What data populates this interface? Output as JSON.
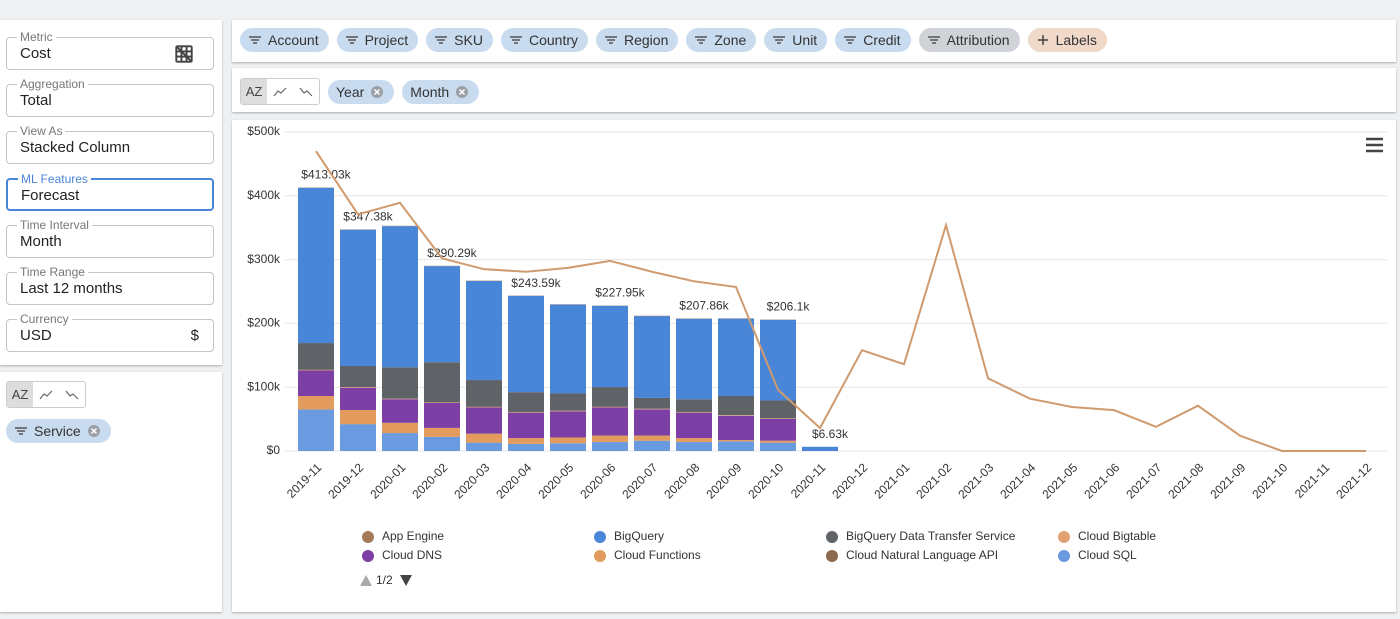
{
  "sidebar": {
    "fields": [
      {
        "label": "Metric",
        "value": "Cost"
      },
      {
        "label": "Aggregation",
        "value": "Total"
      },
      {
        "label": "View As",
        "value": "Stacked Column"
      },
      {
        "label": "ML Features",
        "value": "Forecast"
      },
      {
        "label": "Time Interval",
        "value": "Month"
      },
      {
        "label": "Time Range",
        "value": "Last 12 months"
      },
      {
        "label": "Currency",
        "value": "USD",
        "suffix": "$"
      }
    ],
    "sort_label": "AZ",
    "chips": [
      "Service"
    ]
  },
  "filters": [
    "Account",
    "Project",
    "SKU",
    "Country",
    "Region",
    "Zone",
    "Unit",
    "Credit",
    "Attribution"
  ],
  "labels_button": "Labels",
  "group_by": {
    "sort_label": "AZ",
    "chips": [
      "Year",
      "Month"
    ]
  },
  "chart_data": {
    "type": "stacked-bar",
    "categories": [
      "2019-11",
      "2019-12",
      "2020-01",
      "2020-02",
      "2020-03",
      "2020-04",
      "2020-05",
      "2020-06",
      "2020-07",
      "2020-08",
      "2020-09",
      "2020-10",
      "2020-11",
      "2020-12",
      "2021-01",
      "2021-02",
      "2021-03",
      "2021-04",
      "2021-05",
      "2021-06",
      "2021-07",
      "2021-08",
      "2021-09",
      "2021-10",
      "2021-11",
      "2021-12"
    ],
    "series": [
      {
        "name": "App Engine",
        "color": "#a47a58",
        "values": [
          500,
          500,
          500,
          500,
          500,
          500,
          500,
          500,
          500,
          500,
          500,
          500,
          0,
          null,
          null,
          null,
          null,
          null,
          null,
          null,
          null,
          null,
          null,
          null,
          null,
          null
        ]
      },
      {
        "name": "BigQuery",
        "color": "#4a86d8",
        "values": [
          243330,
          213680,
          221300,
          150590,
          155300,
          150890,
          139300,
          127250,
          128300,
          126160,
          121300,
          126400,
          6630,
          null,
          null,
          null,
          null,
          null,
          null,
          null,
          null,
          null,
          null,
          null,
          null,
          null
        ]
      },
      {
        "name": "BigQuery Data Transfer Service",
        "color": "#5f6368",
        "values": [
          42000,
          33000,
          49000,
          63000,
          42000,
          31000,
          27000,
          31000,
          17000,
          20000,
          30000,
          28000,
          0,
          null,
          null,
          null,
          null,
          null,
          null,
          null,
          null,
          null,
          null,
          null,
          null,
          null
        ]
      },
      {
        "name": "Cloud Bigtable",
        "color": "#e0a070",
        "values": [
          1000,
          1000,
          1000,
          1000,
          1000,
          1000,
          1000,
          1000,
          1000,
          1000,
          1000,
          1000,
          0,
          null,
          null,
          null,
          null,
          null,
          null,
          null,
          null,
          null,
          null,
          null,
          null,
          null
        ]
      },
      {
        "name": "Cloud DNS",
        "color": "#7b3fa6",
        "values": [
          40000,
          35000,
          37000,
          39000,
          41000,
          40000,
          41000,
          44000,
          41000,
          40000,
          38000,
          34000,
          0,
          null,
          null,
          null,
          null,
          null,
          null,
          null,
          null,
          null,
          null,
          null,
          null,
          null
        ]
      },
      {
        "name": "Cloud Functions",
        "color": "#e39b5e",
        "values": [
          21000,
          22000,
          16000,
          14000,
          14000,
          9000,
          9000,
          10000,
          8000,
          6000,
          2000,
          3000,
          0,
          null,
          null,
          null,
          null,
          null,
          null,
          null,
          null,
          null,
          null,
          null,
          null,
          null
        ]
      },
      {
        "name": "Cloud Natural Language API",
        "color": "#8c6a4f",
        "values": [
          200,
          200,
          200,
          200,
          200,
          200,
          200,
          200,
          200,
          200,
          200,
          200,
          0,
          null,
          null,
          null,
          null,
          null,
          null,
          null,
          null,
          null,
          null,
          null,
          null,
          null
        ]
      },
      {
        "name": "Cloud SQL",
        "color": "#6a9be0",
        "values": [
          65000,
          42000,
          28000,
          22000,
          13000,
          11000,
          12000,
          14000,
          16000,
          14000,
          15000,
          13000,
          0,
          null,
          null,
          null,
          null,
          null,
          null,
          null,
          null,
          null,
          null,
          null,
          null,
          null
        ]
      }
    ],
    "total_labels": [
      "$413.03k",
      "$347.38k",
      null,
      "$290.29k",
      null,
      "$243.59k",
      null,
      "$227.95k",
      null,
      "$207.86k",
      null,
      "$206.1k",
      "$6.63k",
      null,
      null,
      null,
      null,
      null,
      null,
      null,
      null,
      null,
      null,
      null,
      null,
      null
    ],
    "forecast": {
      "color": "#cf9b6e",
      "values": [
        470000,
        371000,
        389000,
        302000,
        285000,
        281000,
        287000,
        298000,
        281000,
        266000,
        257000,
        96000,
        36000,
        158000,
        136000,
        354000,
        114000,
        82000,
        69000,
        64000,
        38000,
        71000,
        24000,
        0,
        0,
        0
      ]
    },
    "ylim": [
      0,
      500000
    ],
    "yticks": [
      {
        "value": 0,
        "label": "$0"
      },
      {
        "value": 100000,
        "label": "$100k"
      },
      {
        "value": 200000,
        "label": "$200k"
      },
      {
        "value": 300000,
        "label": "$300k"
      },
      {
        "value": 400000,
        "label": "$400k"
      },
      {
        "value": 500000,
        "label": "$500k"
      }
    ],
    "grid": true,
    "legend_page": "1/2"
  }
}
